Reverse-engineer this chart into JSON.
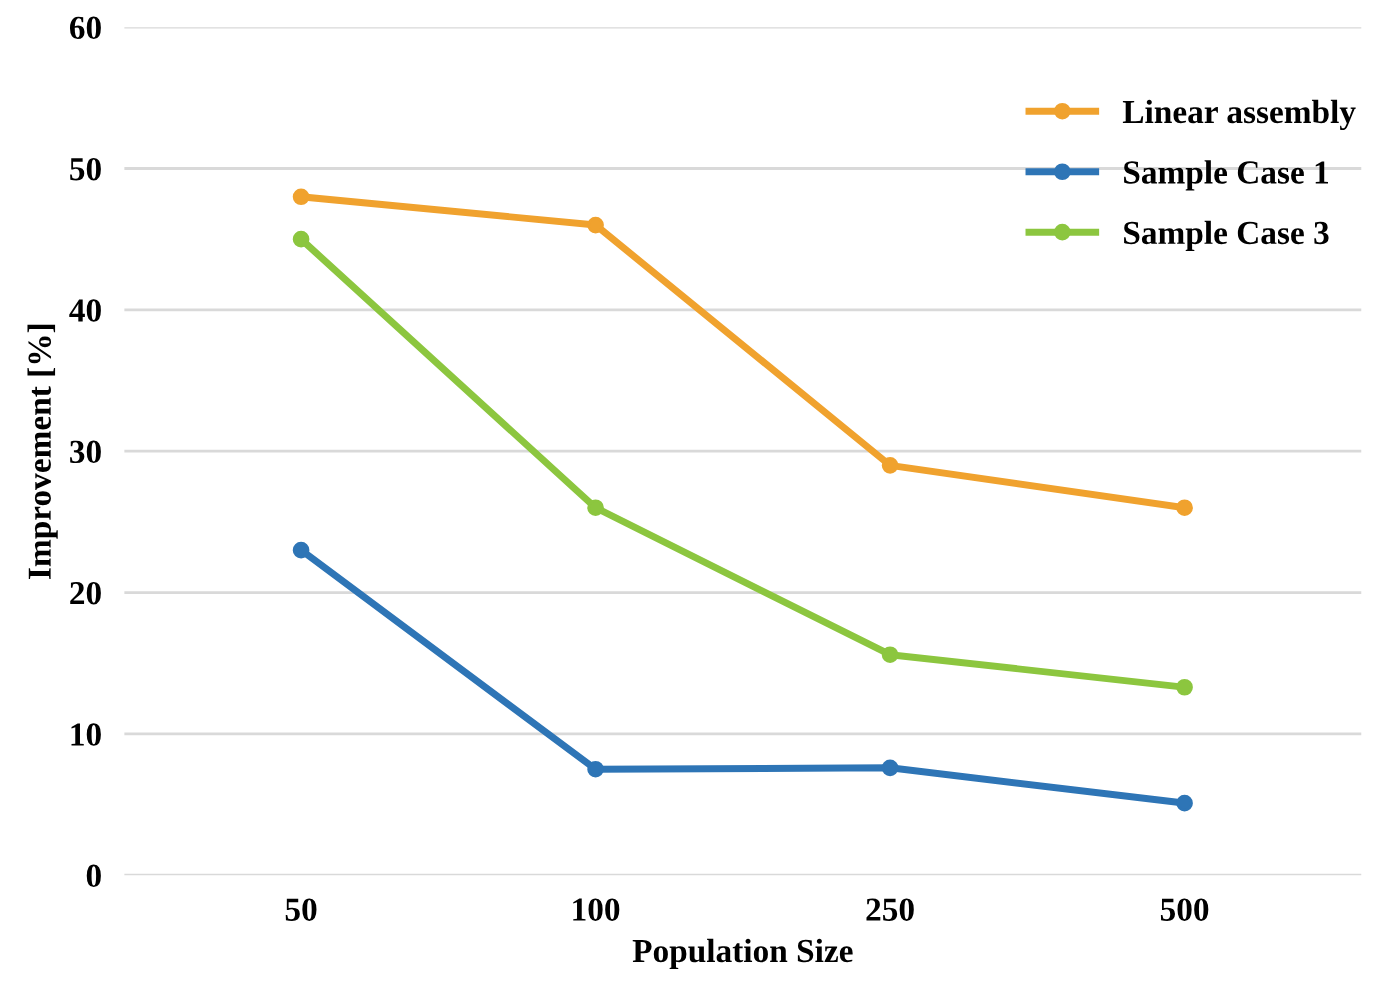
{
  "chart_data": {
    "type": "line",
    "xlabel": "Population Size",
    "ylabel": "Improvement [%]",
    "categories": [
      "50",
      "100",
      "250",
      "500"
    ],
    "series": [
      {
        "name": "Linear assembly",
        "color": "#f0a22e",
        "values": [
          48,
          46,
          29,
          26
        ]
      },
      {
        "name": "Sample Case 1",
        "color": "#2e75b6",
        "values": [
          23,
          7.5,
          7.6,
          5.1
        ]
      },
      {
        "name": "Sample Case 3",
        "color": "#8cc63f",
        "values": [
          45,
          26,
          15.6,
          13.3
        ]
      }
    ],
    "ylim": [
      0,
      60
    ],
    "yticks": [
      0,
      10,
      20,
      30,
      40,
      50,
      60
    ],
    "grid": "y",
    "legend": "top right",
    "marker": "circle",
    "line_style": "solid"
  }
}
